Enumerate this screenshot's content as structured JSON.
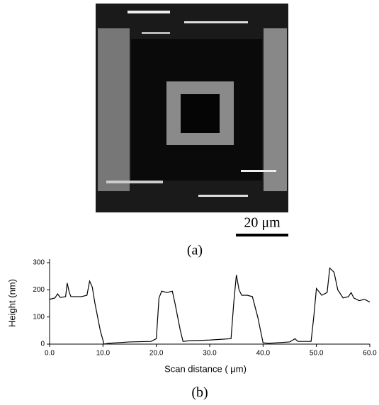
{
  "image": {
    "scale_bar": "20 μm",
    "caption": "(a)"
  },
  "chart_data": {
    "type": "line",
    "caption": "(b)",
    "x_label": "Scan distance ( μm)",
    "y_label": "Height (nm)",
    "xlim": [
      0,
      60
    ],
    "ylim": [
      0,
      300
    ],
    "xticks": [
      {
        "value": 0,
        "label": "0.0"
      },
      {
        "value": 10,
        "label": "10.0"
      },
      {
        "value": 20,
        "label": "20.0"
      },
      {
        "value": 30,
        "label": "30.0"
      },
      {
        "value": 40,
        "label": "40.0"
      },
      {
        "value": 50,
        "label": "50.0"
      },
      {
        "value": 60,
        "label": "60.0"
      }
    ],
    "yticks": [
      0,
      100,
      200,
      300
    ],
    "series": [
      {
        "color": "#000000",
        "x": [
          0,
          1,
          1.5,
          2,
          3,
          3.3,
          3.7,
          4,
          6,
          7,
          7.5,
          8,
          8.5,
          9.5,
          10.2,
          11,
          15,
          19,
          20,
          20.5,
          21,
          22,
          23,
          23.5,
          24.5,
          25,
          26,
          30,
          34,
          34.5,
          35,
          35.5,
          36,
          37,
          38,
          39,
          40,
          41,
          45,
          46,
          46.5,
          49,
          49.5,
          50,
          51,
          52,
          52.5,
          53.3,
          54,
          55,
          56,
          56.5,
          57,
          58,
          59,
          60
        ],
        "values": [
          165,
          170,
          185,
          172,
          175,
          225,
          190,
          175,
          175,
          180,
          232,
          210,
          150,
          50,
          0,
          3,
          8,
          10,
          20,
          170,
          195,
          190,
          195,
          150,
          50,
          10,
          12,
          15,
          20,
          150,
          255,
          200,
          180,
          180,
          175,
          100,
          5,
          3,
          8,
          20,
          10,
          10,
          100,
          205,
          180,
          190,
          280,
          265,
          200,
          170,
          175,
          190,
          170,
          160,
          165,
          155
        ]
      }
    ]
  }
}
